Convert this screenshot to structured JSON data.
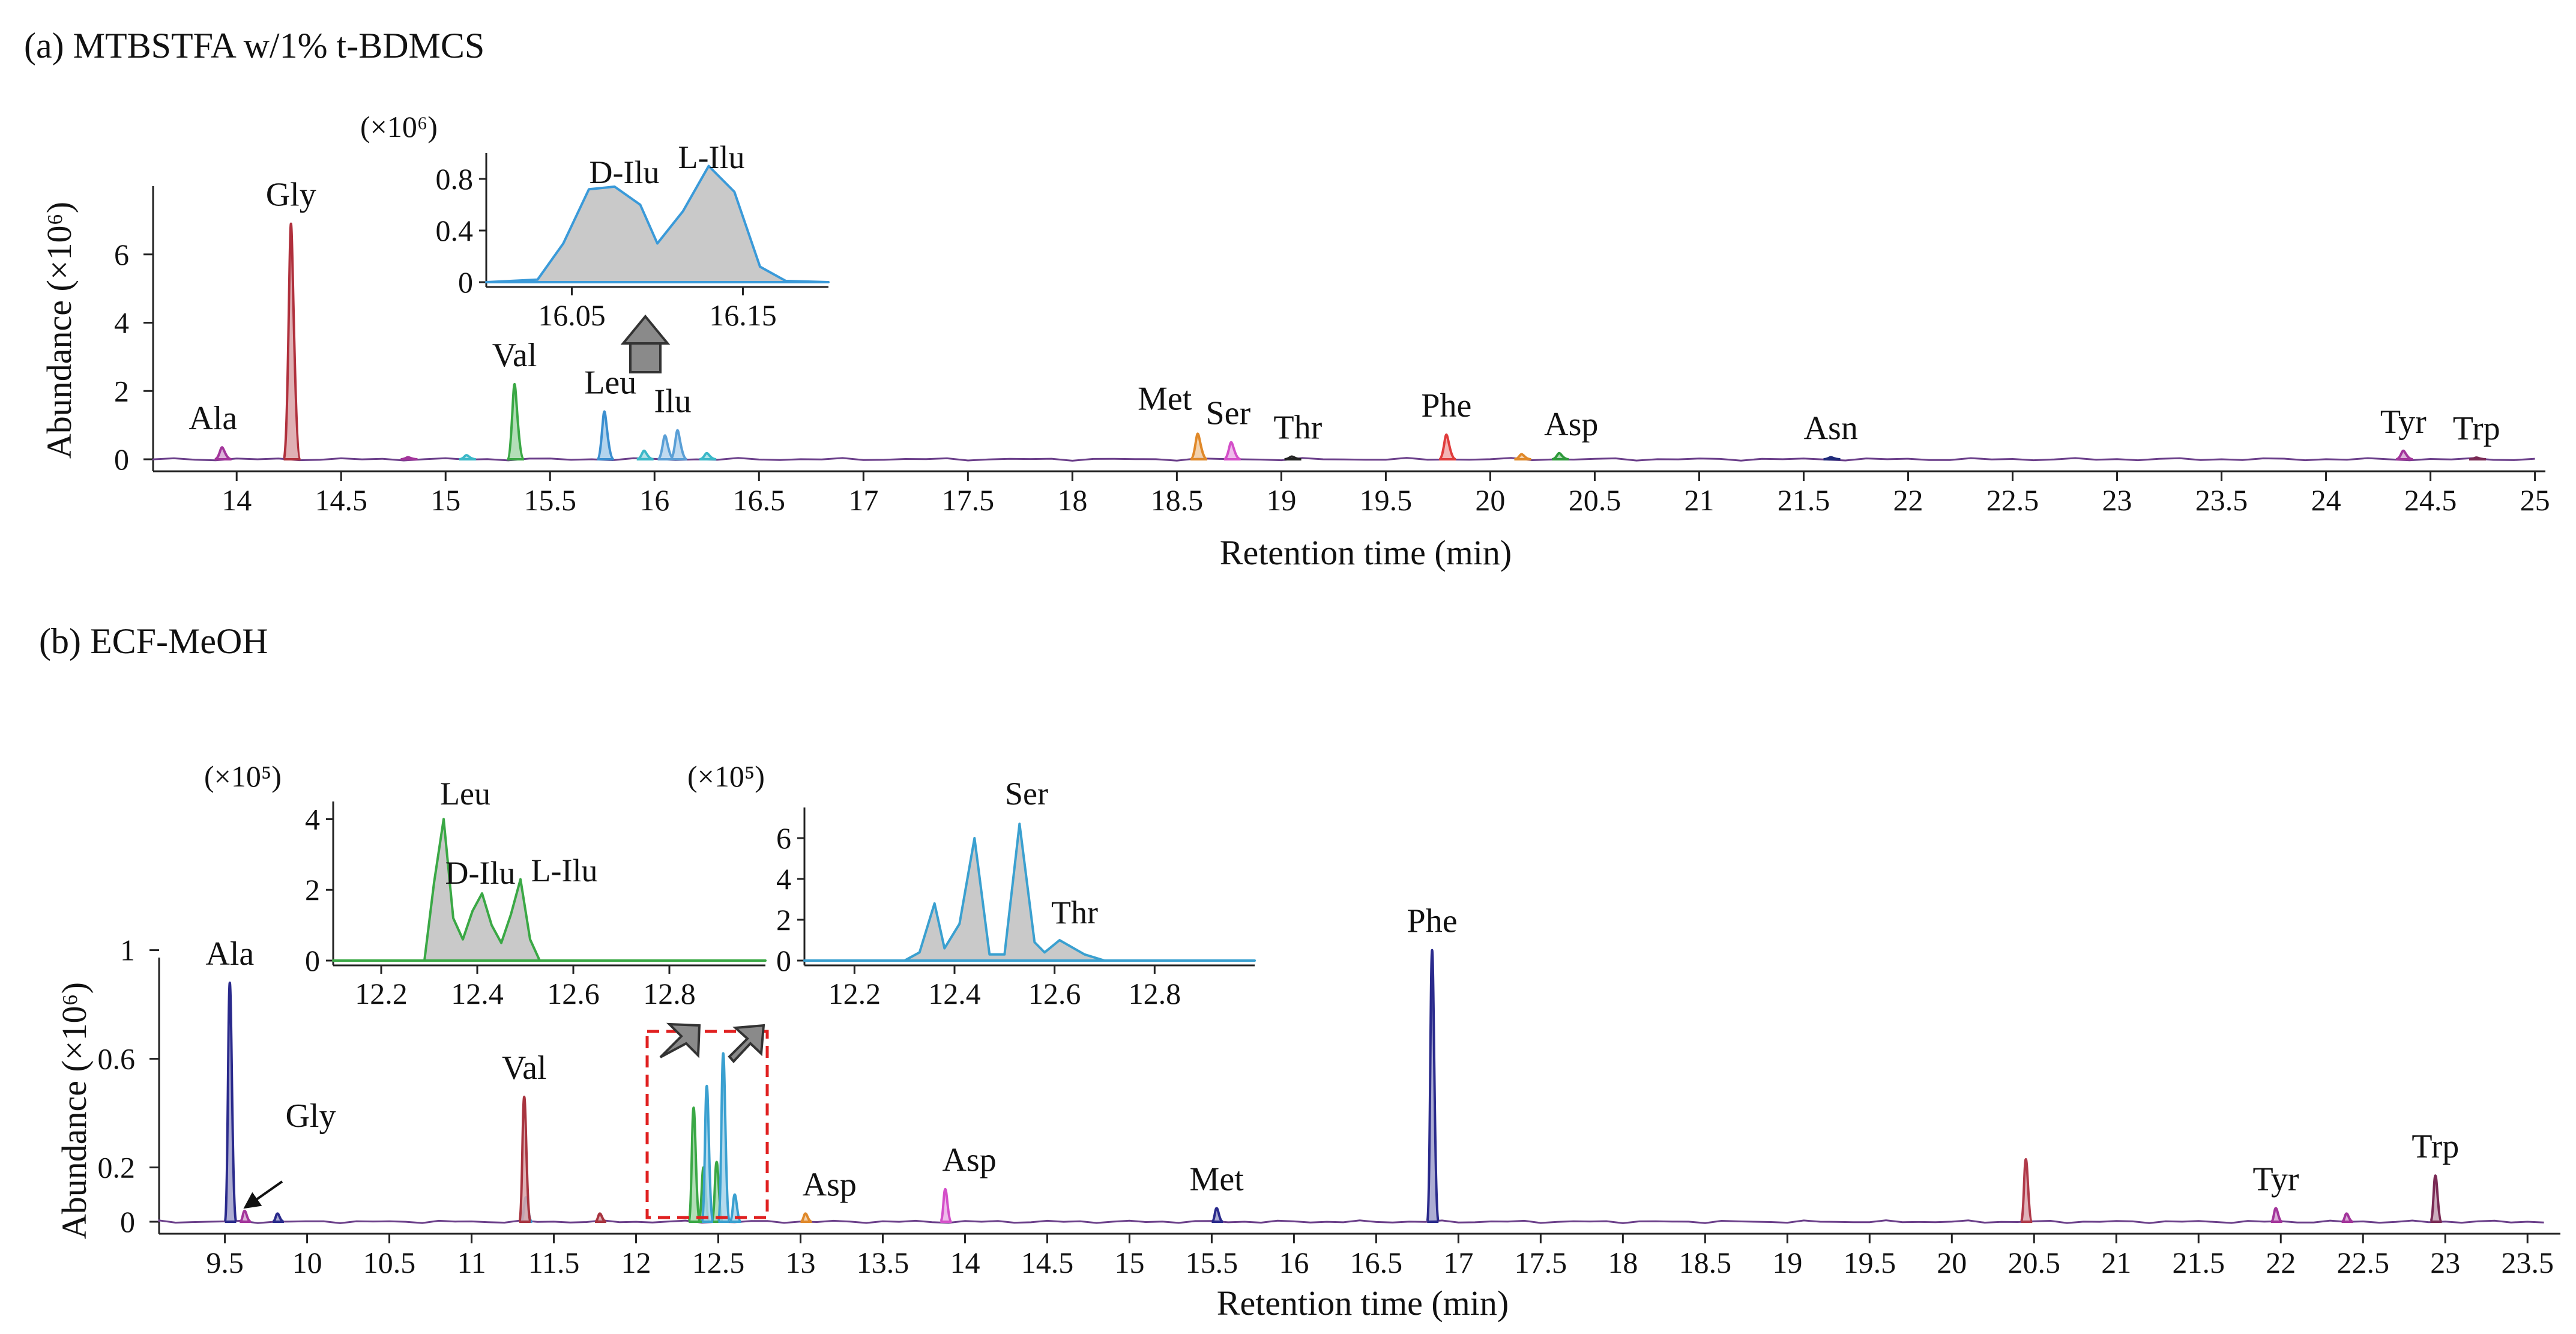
{
  "chart_data": [
    {
      "id": "a",
      "type": "line",
      "title": "(a) MTBSTFA w/1% t-BDMCS",
      "xlabel": "Retention time (min)",
      "ylabel": "Abundance (×10⁶)",
      "xlim": [
        13.6,
        25.05
      ],
      "ylim": [
        0,
        8
      ],
      "x_ticks": [
        "14",
        "14.5",
        "15",
        "15.5",
        "16",
        "16.5",
        "17",
        "17.5",
        "18",
        "18.5",
        "19",
        "19.5",
        "20",
        "20.5",
        "21",
        "21.5",
        "22",
        "22.5",
        "23",
        "23.5",
        "24",
        "24.5",
        "25"
      ],
      "y_ticks": [
        "0",
        "2",
        "4",
        "6"
      ],
      "peaks": [
        {
          "name": "Ala",
          "rt": 13.93,
          "height": 0.35,
          "color": "#a3359b"
        },
        {
          "name": "Gly",
          "rt": 14.26,
          "height": 6.9,
          "color": "#b0303c"
        },
        {
          "name": "Val",
          "rt": 15.33,
          "height": 2.2,
          "color": "#3aa845"
        },
        {
          "name": "Leu",
          "rt": 15.76,
          "height": 1.4,
          "color": "#3b8fd0"
        },
        {
          "name": "Ilu",
          "rt": 16.11,
          "height": 0.85,
          "color": "#5a9fd6"
        },
        {
          "name": "Met",
          "rt": 18.6,
          "height": 0.75,
          "color": "#e0892a"
        },
        {
          "name": "Ser",
          "rt": 18.76,
          "height": 0.5,
          "color": "#d44fc9"
        },
        {
          "name": "Thr",
          "rt": 19.05,
          "height": 0.08,
          "color": "#222222"
        },
        {
          "name": "Phe",
          "rt": 19.79,
          "height": 0.72,
          "color": "#e03c3c"
        },
        {
          "name": "Asp",
          "rt": 20.33,
          "height": 0.18,
          "color": "#2e9a3b"
        },
        {
          "name": "Asn",
          "rt": 21.63,
          "height": 0.06,
          "color": "#1f2a7a"
        },
        {
          "name": "Tyr",
          "rt": 24.37,
          "height": 0.25,
          "color": "#a3359b"
        },
        {
          "name": "Trp",
          "rt": 24.72,
          "height": 0.05,
          "color": "#7a2a55"
        }
      ],
      "minor_peaks": [
        {
          "rt": 16.05,
          "height": 0.7,
          "color": "#5a9fd6"
        },
        {
          "rt": 15.95,
          "height": 0.25,
          "color": "#3bb8c8"
        },
        {
          "rt": 16.25,
          "height": 0.18,
          "color": "#3bb8c8"
        },
        {
          "rt": 15.1,
          "height": 0.12,
          "color": "#3bb8c8"
        },
        {
          "rt": 20.15,
          "height": 0.15,
          "color": "#e0892a"
        },
        {
          "rt": 14.82,
          "height": 0.06,
          "color": "#a3359b"
        }
      ],
      "inset": {
        "scale_label": "(×10⁶)",
        "xlim": [
          16.0,
          16.2
        ],
        "ylim": [
          0,
          1.0
        ],
        "x_ticks": [
          "16.05",
          "16.15"
        ],
        "y_ticks": [
          "0",
          "0.4",
          "0.8"
        ],
        "labels": [
          "D-Ilu",
          "L-Ilu"
        ],
        "trace_color": "#3a9ad9",
        "x": [
          16.0,
          16.03,
          16.045,
          16.06,
          16.075,
          16.09,
          16.1,
          16.115,
          16.13,
          16.145,
          16.16,
          16.175,
          16.2
        ],
        "y": [
          0.0,
          0.02,
          0.3,
          0.72,
          0.74,
          0.6,
          0.3,
          0.55,
          0.9,
          0.7,
          0.12,
          0.01,
          0.0
        ]
      }
    },
    {
      "id": "b",
      "type": "line",
      "title": "(b) ECF-MeOH",
      "xlabel": "Retention time (min)",
      "ylabel": "Abundance (×10⁶)",
      "xlim": [
        9.1,
        23.7
      ],
      "ylim": [
        0,
        1.05
      ],
      "x_ticks": [
        "9.5",
        "10",
        "10.5",
        "11",
        "11.5",
        "12",
        "12.5",
        "13",
        "13.5",
        "14",
        "14.5",
        "15",
        "15.5",
        "16",
        "16.5",
        "17",
        "17.5",
        "18",
        "18.5",
        "19",
        "19.5",
        "20",
        "20.5",
        "21",
        "21.5",
        "22",
        "22.5",
        "23",
        "23.5"
      ],
      "y_ticks": [
        "0",
        "0.2",
        "0.6",
        "1"
      ],
      "peaks": [
        {
          "name": "Ala",
          "rt": 9.53,
          "height": 0.88,
          "color": "#2a2a8c"
        },
        {
          "name": "Gly",
          "rt": 9.62,
          "height": 0.04,
          "color": "#a3359b"
        },
        {
          "name": "Val",
          "rt": 11.32,
          "height": 0.46,
          "color": "#a8343f"
        },
        {
          "name": "Asp",
          "rt": 13.03,
          "height": 0.03,
          "color": "#e0892a"
        },
        {
          "name": "Asp",
          "rt": 13.88,
          "height": 0.12,
          "color": "#d44fc9"
        },
        {
          "name": "Met",
          "rt": 15.53,
          "height": 0.05,
          "color": "#2a2a8c"
        },
        {
          "name": "Phe",
          "rt": 16.84,
          "height": 1.0,
          "color": "#2a2a8c"
        },
        {
          "name": "Tyr",
          "rt": 21.97,
          "height": 0.05,
          "color": "#a3359b"
        },
        {
          "name": "Trp",
          "rt": 22.94,
          "height": 0.17,
          "color": "#7a2a55"
        }
      ],
      "minor_peaks": [
        {
          "rt": 12.35,
          "height": 0.42,
          "color": "#3aa845"
        },
        {
          "rt": 12.41,
          "height": 0.2,
          "color": "#3aa845"
        },
        {
          "rt": 12.49,
          "height": 0.22,
          "color": "#3aa845"
        },
        {
          "rt": 12.43,
          "height": 0.5,
          "color": "#3aa0d0"
        },
        {
          "rt": 12.53,
          "height": 0.62,
          "color": "#3aa0d0"
        },
        {
          "rt": 12.6,
          "height": 0.1,
          "color": "#3aa0d0"
        },
        {
          "rt": 11.33,
          "height": 0.09,
          "color": "#3a9ad9"
        },
        {
          "rt": 9.82,
          "height": 0.03,
          "color": "#2a2a8c"
        },
        {
          "rt": 11.78,
          "height": 0.03,
          "color": "#a8343f"
        },
        {
          "rt": 20.45,
          "height": 0.23,
          "color": "#b03a4a"
        },
        {
          "rt": 22.4,
          "height": 0.03,
          "color": "#a3359b"
        }
      ],
      "insets": [
        {
          "scale_label": "(×10⁵)",
          "xlim": [
            12.1,
            13.0
          ],
          "ylim": [
            0,
            4.5
          ],
          "x_ticks": [
            "12.2",
            "12.4",
            "12.6",
            "12.8"
          ],
          "y_ticks": [
            "0",
            "2",
            "4"
          ],
          "labels": [
            "Leu",
            "D-Ilu",
            "L-Ilu"
          ],
          "trace_color": "#3aa845",
          "x": [
            12.1,
            12.29,
            12.31,
            12.33,
            12.35,
            12.37,
            12.39,
            12.41,
            12.43,
            12.45,
            12.47,
            12.49,
            12.51,
            12.53,
            12.6,
            13.0
          ],
          "y": [
            0.0,
            0.0,
            2.2,
            4.0,
            1.2,
            0.6,
            1.4,
            1.9,
            1.0,
            0.5,
            1.3,
            2.3,
            0.6,
            0.0,
            0.0,
            0.0
          ]
        },
        {
          "scale_label": "(×10⁵)",
          "xlim": [
            12.1,
            13.0
          ],
          "ylim": [
            0,
            7.5
          ],
          "x_ticks": [
            "12.2",
            "12.4",
            "12.6",
            "12.8"
          ],
          "y_ticks": [
            "0",
            "2",
            "4",
            "6"
          ],
          "labels": [
            "Ser",
            "Thr"
          ],
          "trace_color": "#3aa0d0",
          "x": [
            12.1,
            12.3,
            12.33,
            12.36,
            12.38,
            12.41,
            12.44,
            12.47,
            12.5,
            12.53,
            12.56,
            12.58,
            12.61,
            12.66,
            12.7,
            13.0
          ],
          "y": [
            0.0,
            0.0,
            0.4,
            2.8,
            0.6,
            1.8,
            6.0,
            0.3,
            0.3,
            6.7,
            0.9,
            0.4,
            1.0,
            0.3,
            0.0,
            0.0
          ]
        }
      ]
    }
  ]
}
